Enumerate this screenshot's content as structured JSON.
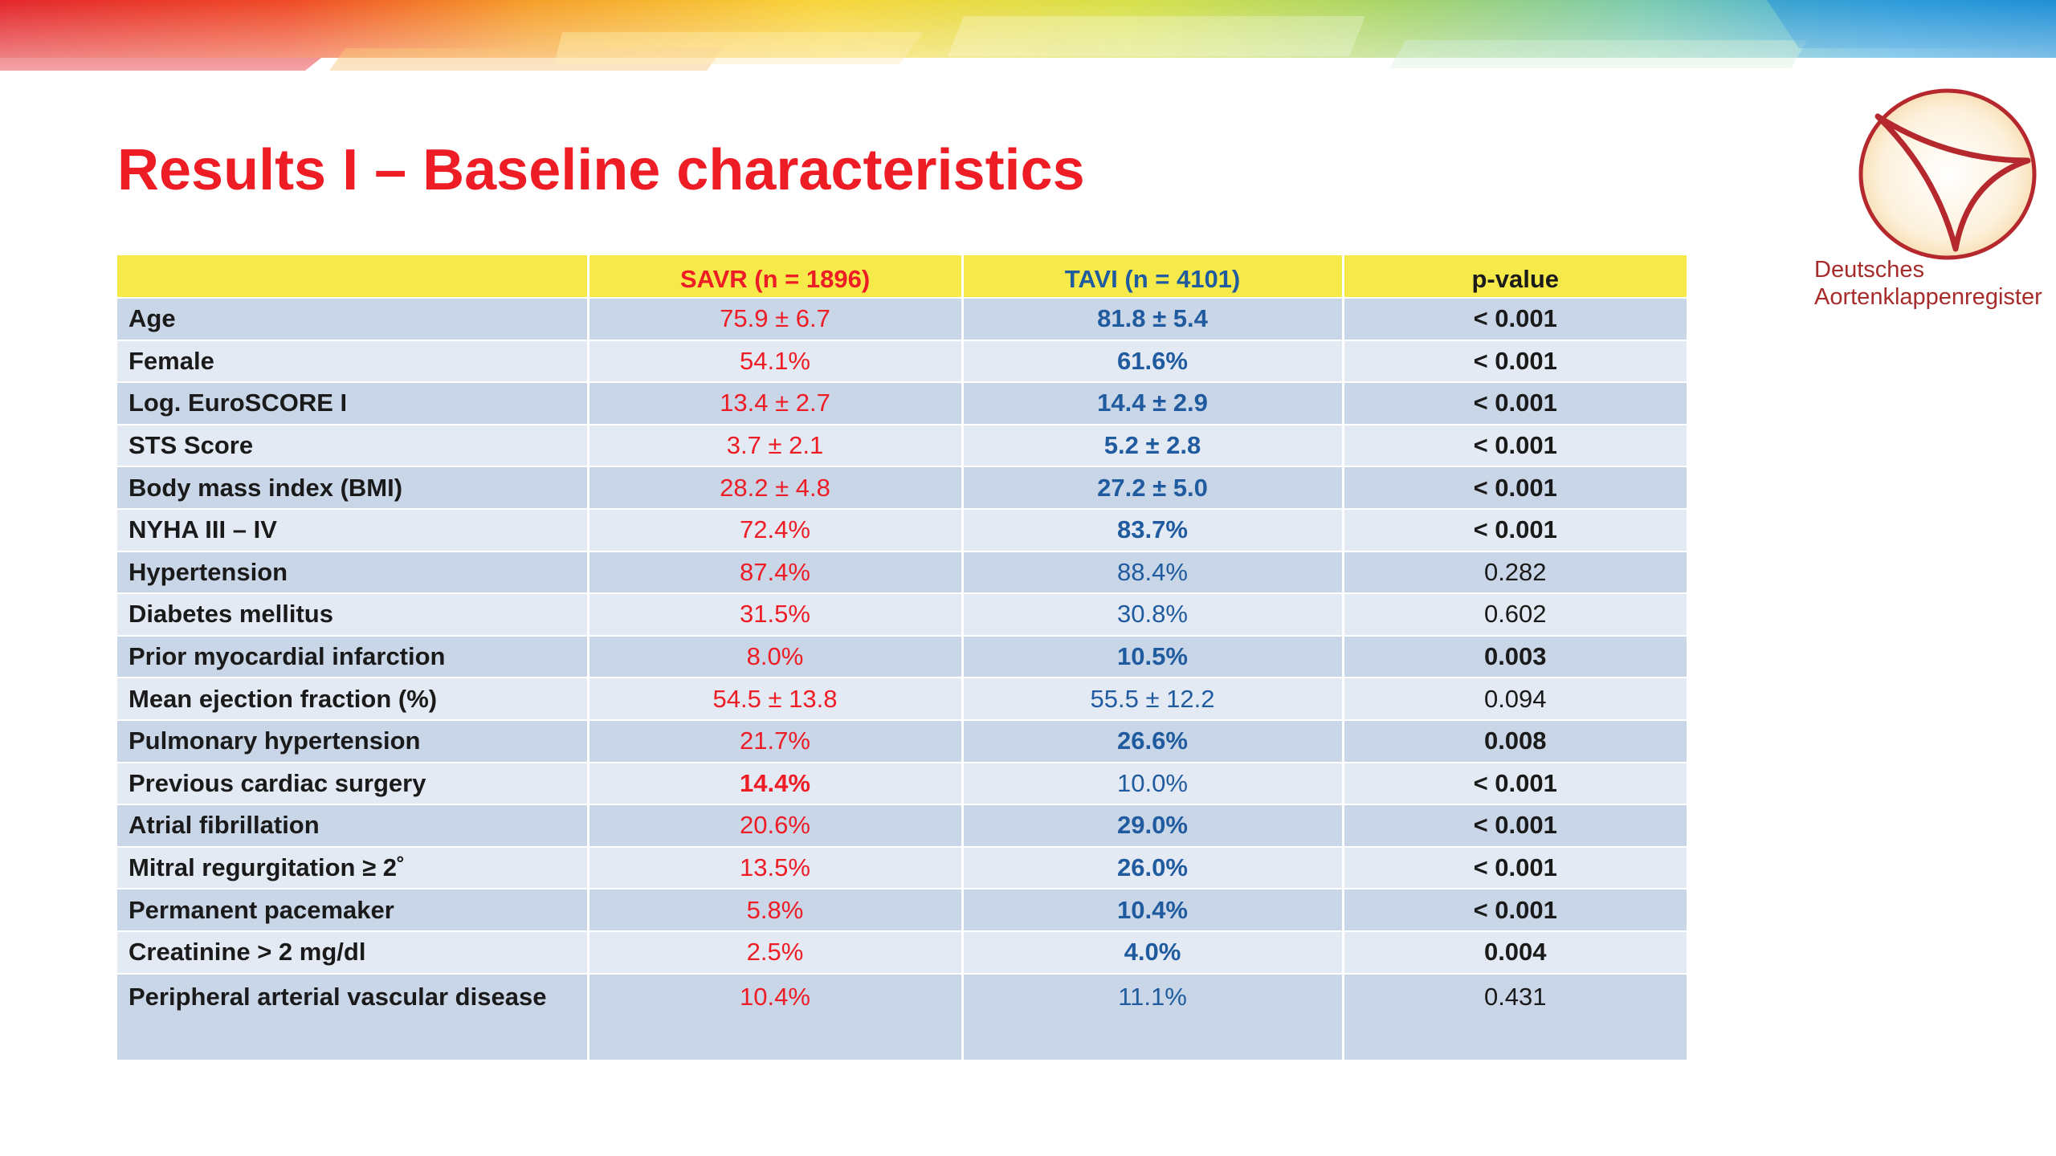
{
  "slide": {
    "title": "Results I – Baseline characteristics"
  },
  "logo": {
    "icon": "aortic-valve-logo-icon",
    "line1": "Deutsches",
    "line2": "Aortenklappenregister"
  },
  "colors": {
    "title": "#ee1c25",
    "savr": "#ee1c25",
    "tavi": "#1f5b9e",
    "header_bg": "#f5ea4a",
    "row_dark": "#c9d6e8",
    "row_light": "#e4eaf4",
    "logo_text": "#a82b2b"
  },
  "table": {
    "headers": {
      "label": "",
      "savr": "SAVR (n = 1896)",
      "tavi": "TAVI (n = 4101)",
      "p": "p-value"
    },
    "rows": [
      {
        "label": "Age",
        "savr": "75.9 ± 6.7",
        "tavi": "81.8 ± 5.4",
        "p": "< 0.001"
      },
      {
        "label": "Female",
        "savr": "54.1%",
        "tavi": "61.6%",
        "p": "< 0.001"
      },
      {
        "label": "Log. EuroSCORE I",
        "savr": "13.4 ± 2.7",
        "tavi": "14.4 ± 2.9",
        "p": "< 0.001"
      },
      {
        "label": "STS Score",
        "savr": "3.7 ± 2.1",
        "tavi": "5.2 ± 2.8",
        "p": "< 0.001"
      },
      {
        "label": "Body mass index (BMI)",
        "savr": "28.2 ± 4.8",
        "tavi": "27.2 ± 5.0",
        "p": "< 0.001"
      },
      {
        "label": "NYHA III – IV",
        "savr": "72.4%",
        "tavi": "83.7%",
        "p": "< 0.001"
      },
      {
        "label": "Hypertension",
        "savr": "87.4%",
        "tavi": "88.4%",
        "p": "0.282"
      },
      {
        "label": "Diabetes mellitus",
        "savr": "31.5%",
        "tavi": "30.8%",
        "p": "0.602"
      },
      {
        "label": "Prior myocardial infarction",
        "savr": "8.0%",
        "tavi": "10.5%",
        "p": "0.003"
      },
      {
        "label": "Mean ejection fraction (%)",
        "savr": "54.5 ± 13.8",
        "tavi": "55.5 ± 12.2",
        "p": "0.094"
      },
      {
        "label": "Pulmonary hypertension",
        "savr": "21.7%",
        "tavi": "26.6%",
        "p": "0.008"
      },
      {
        "label": "Previous cardiac surgery",
        "savr": "14.4%",
        "tavi": "10.0%",
        "p": "< 0.001"
      },
      {
        "label": "Atrial fibrillation",
        "savr": "20.6%",
        "tavi": "29.0%",
        "p": "< 0.001"
      },
      {
        "label": "Mitral regurgitation ≥ 2˚",
        "savr": "13.5%",
        "tavi": "26.0%",
        "p": "< 0.001"
      },
      {
        "label": "Permanent pacemaker",
        "savr": "5.8%",
        "tavi": "10.4%",
        "p": "< 0.001"
      },
      {
        "label": "Creatinine > 2 mg/dl",
        "savr": "2.5%",
        "tavi": "4.0%",
        "p": "0.004"
      },
      {
        "label": "Peripheral arterial vascular disease",
        "savr": "10.4%",
        "tavi": "11.1%",
        "p": "0.431"
      }
    ]
  }
}
